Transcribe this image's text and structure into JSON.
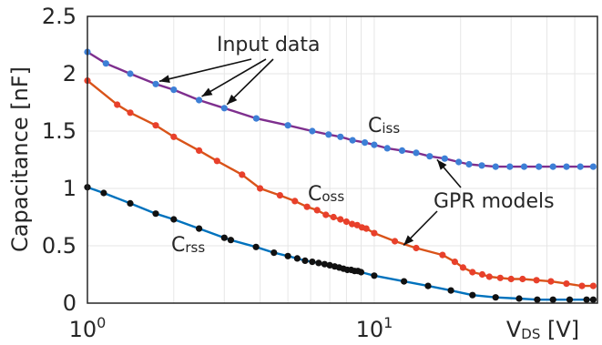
{
  "chart_data": {
    "type": "line",
    "xscale": "log",
    "xlim": [
      1,
      60
    ],
    "ylim": [
      0,
      2.5
    ],
    "grid": true,
    "xlabel": {
      "main": "V",
      "sub": "DS",
      "unit": " [V]"
    },
    "ylabel": "Capacitance [nF]",
    "x_tick_labels": [
      {
        "value": 1,
        "base": "10",
        "exp": "0"
      },
      {
        "value": 10,
        "base": "10",
        "exp": "1"
      }
    ],
    "y_ticks": [
      0,
      0.5,
      1,
      1.5,
      2,
      2.5
    ],
    "y_tick_labels": [
      "0",
      "0.5",
      "1",
      "1.5",
      "2",
      "2.5"
    ],
    "series": [
      {
        "name": "Ciss",
        "label_main": "C",
        "label_sub": "iss",
        "line_color": "#7e2f8e",
        "marker_color": "#3d7fd6",
        "points": [
          [
            1,
            2.19
          ],
          [
            1.16,
            2.09
          ],
          [
            1.41,
            2.0
          ],
          [
            1.73,
            1.91
          ],
          [
            2.0,
            1.86
          ],
          [
            2.45,
            1.77
          ],
          [
            3.0,
            1.7
          ],
          [
            3.88,
            1.61
          ],
          [
            5.0,
            1.55
          ],
          [
            6.08,
            1.5
          ],
          [
            6.93,
            1.47
          ],
          [
            7.62,
            1.45
          ],
          [
            8.4,
            1.42
          ],
          [
            9.27,
            1.4
          ],
          [
            10.0,
            1.38
          ],
          [
            11.1,
            1.35
          ],
          [
            12.5,
            1.33
          ],
          [
            14.0,
            1.31
          ],
          [
            15.6,
            1.28
          ],
          [
            17.6,
            1.26
          ],
          [
            19.7,
            1.23
          ],
          [
            21.4,
            1.21
          ],
          [
            23.7,
            1.2
          ],
          [
            26.5,
            1.19
          ],
          [
            29.7,
            1.19
          ],
          [
            33.3,
            1.19
          ],
          [
            37.5,
            1.19
          ],
          [
            42.0,
            1.19
          ],
          [
            46.8,
            1.19
          ],
          [
            52.3,
            1.19
          ],
          [
            58.0,
            1.19
          ]
        ]
      },
      {
        "name": "Coss",
        "label_main": "C",
        "label_sub": "oss",
        "line_color": "#d95319",
        "marker_color": "#e8402b",
        "points": [
          [
            1,
            1.94
          ],
          [
            1.27,
            1.73
          ],
          [
            1.41,
            1.66
          ],
          [
            1.73,
            1.55
          ],
          [
            2.0,
            1.45
          ],
          [
            2.45,
            1.33
          ],
          [
            2.83,
            1.24
          ],
          [
            3.46,
            1.12
          ],
          [
            4.0,
            1.0
          ],
          [
            4.69,
            0.94
          ],
          [
            5.29,
            0.89
          ],
          [
            5.83,
            0.84
          ],
          [
            6.32,
            0.81
          ],
          [
            6.78,
            0.77
          ],
          [
            7.21,
            0.75
          ],
          [
            7.62,
            0.73
          ],
          [
            8.0,
            0.71
          ],
          [
            8.37,
            0.69
          ],
          [
            8.72,
            0.68
          ],
          [
            9.06,
            0.66
          ],
          [
            9.38,
            0.65
          ],
          [
            10.0,
            0.61
          ],
          [
            11.8,
            0.54
          ],
          [
            14.0,
            0.48
          ],
          [
            17.3,
            0.42
          ],
          [
            19.1,
            0.36
          ],
          [
            20.4,
            0.31
          ],
          [
            22.0,
            0.27
          ],
          [
            23.8,
            0.25
          ],
          [
            25.2,
            0.23
          ],
          [
            27.5,
            0.22
          ],
          [
            30.0,
            0.21
          ],
          [
            32.9,
            0.21
          ],
          [
            36.8,
            0.2
          ],
          [
            41.3,
            0.19
          ],
          [
            46.8,
            0.17
          ],
          [
            53.0,
            0.15
          ],
          [
            58.0,
            0.15
          ]
        ]
      },
      {
        "name": "Crss",
        "label_main": "C",
        "label_sub": "rss",
        "line_color": "#0072bd",
        "marker_color": "#111111",
        "points": [
          [
            1,
            1.01
          ],
          [
            1.14,
            0.96
          ],
          [
            1.41,
            0.87
          ],
          [
            1.73,
            0.78
          ],
          [
            2.0,
            0.73
          ],
          [
            2.45,
            0.65
          ],
          [
            3.0,
            0.57
          ],
          [
            3.16,
            0.55
          ],
          [
            3.87,
            0.49
          ],
          [
            4.47,
            0.44
          ],
          [
            5.0,
            0.41
          ],
          [
            5.39,
            0.39
          ],
          [
            5.74,
            0.37
          ],
          [
            6.08,
            0.36
          ],
          [
            6.4,
            0.35
          ],
          [
            6.71,
            0.34
          ],
          [
            7.0,
            0.33
          ],
          [
            7.28,
            0.32
          ],
          [
            7.55,
            0.31
          ],
          [
            7.81,
            0.3
          ],
          [
            8.06,
            0.29
          ],
          [
            8.31,
            0.29
          ],
          [
            8.54,
            0.28
          ],
          [
            8.77,
            0.28
          ],
          [
            9.0,
            0.27
          ],
          [
            10.0,
            0.24
          ],
          [
            12.7,
            0.19
          ],
          [
            15.4,
            0.15
          ],
          [
            18.5,
            0.11
          ],
          [
            22.0,
            0.07
          ],
          [
            26.5,
            0.05
          ],
          [
            32.0,
            0.04
          ],
          [
            37.0,
            0.03
          ],
          [
            42.0,
            0.03
          ],
          [
            48.0,
            0.03
          ],
          [
            55.0,
            0.03
          ],
          [
            58.0,
            0.03
          ]
        ]
      }
    ],
    "annotations": {
      "input_data_label": "Input data",
      "gpr_models_label": "GPR models"
    }
  }
}
